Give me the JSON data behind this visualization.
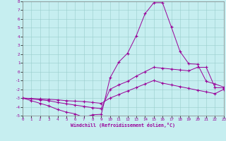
{
  "xlabel": "Windchill (Refroidissement éolien,°C)",
  "xlim": [
    0,
    23
  ],
  "ylim": [
    -5,
    8
  ],
  "xtick_labels": [
    "0",
    "1",
    "2",
    "3",
    "4",
    "5",
    "6",
    "7",
    "8",
    "9",
    "10",
    "11",
    "12",
    "13",
    "14",
    "15",
    "16",
    "17",
    "18",
    "19",
    "20",
    "21",
    "22",
    "23"
  ],
  "ytick_labels": [
    "8",
    "7",
    "6",
    "5",
    "4",
    "3",
    "2",
    "1",
    "0",
    "-1",
    "-2",
    "-3",
    "-4",
    "-5"
  ],
  "ytick_vals": [
    8,
    7,
    6,
    5,
    4,
    3,
    2,
    1,
    0,
    -1,
    -2,
    -3,
    -4,
    -5
  ],
  "bg_color": "#c6eef0",
  "line_color": "#990099",
  "grid_color": "#99cccc",
  "line1_x": [
    0,
    1,
    2,
    3,
    4,
    5,
    6,
    7,
    8,
    9,
    10,
    11,
    12,
    13,
    14,
    15,
    16,
    17,
    18,
    19,
    20,
    21,
    22,
    23
  ],
  "line1_y": [
    -3.0,
    -3.3,
    -3.6,
    -3.9,
    -4.3,
    -4.6,
    -4.8,
    -5.2,
    -4.9,
    -4.85,
    -0.7,
    1.1,
    2.1,
    4.1,
    6.6,
    7.85,
    7.85,
    5.1,
    2.3,
    0.9,
    0.85,
    -1.1,
    -1.4,
    -1.75
  ],
  "line2_x": [
    0,
    2,
    3,
    4,
    5,
    6,
    7,
    8,
    9,
    10,
    11,
    12,
    13,
    14,
    15,
    16,
    17,
    18,
    19,
    20,
    21,
    22,
    23
  ],
  "line2_y": [
    -3.0,
    -3.2,
    -3.3,
    -3.5,
    -3.65,
    -3.8,
    -3.95,
    -4.1,
    -4.2,
    -2.0,
    -1.5,
    -1.1,
    -0.5,
    0.0,
    0.5,
    0.4,
    0.3,
    0.2,
    0.1,
    0.5,
    0.5,
    -1.8,
    -1.85
  ],
  "line3_x": [
    0,
    1,
    2,
    3,
    4,
    5,
    6,
    7,
    8,
    9,
    10,
    11,
    12,
    13,
    14,
    15,
    16,
    17,
    18,
    19,
    20,
    21,
    22,
    23
  ],
  "line3_y": [
    -3.0,
    -3.05,
    -3.1,
    -3.15,
    -3.2,
    -3.3,
    -3.35,
    -3.4,
    -3.5,
    -3.6,
    -3.0,
    -2.6,
    -2.2,
    -1.8,
    -1.4,
    -1.0,
    -1.3,
    -1.5,
    -1.7,
    -1.9,
    -2.1,
    -2.3,
    -2.5,
    -2.0
  ]
}
